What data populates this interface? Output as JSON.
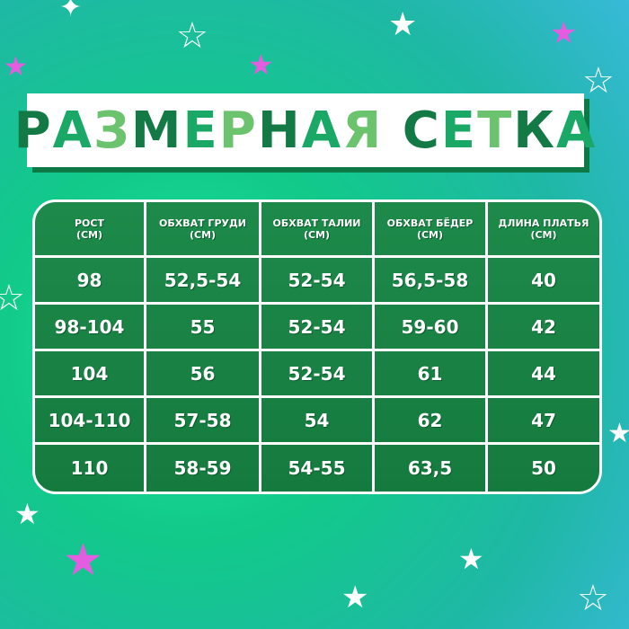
{
  "title": {
    "text": "РАЗМЕРНАЯ СЕТКА",
    "letter_colors": [
      "#137a45",
      "#1aa866",
      "#6cc36e",
      "#137a45",
      "#1aa866",
      "#6cc36e",
      "#137a45",
      "#1aa866",
      "#6cc36e"
    ]
  },
  "colors": {
    "table_bg": "#1a8446",
    "title_dark": "#137a45",
    "title_mid": "#1aa866",
    "title_light": "#6cc36e",
    "star_pink": "#e45ce0"
  },
  "headers": [
    {
      "line1": "РОСТ",
      "line2": "(СМ)"
    },
    {
      "line1": "ОБХВАТ ГРУДИ",
      "line2": "(СМ)"
    },
    {
      "line1": "ОБХВАТ ТАЛИИ",
      "line2": "(СМ)"
    },
    {
      "line1": "ОБХВАТ БЁДЕР",
      "line2": "(СМ)"
    },
    {
      "line1": "ДЛИНА ПЛАТЬЯ",
      "line2": "(СМ)"
    }
  ],
  "rows": [
    [
      "98",
      "52,5-54",
      "52-54",
      "56,5-58",
      "40"
    ],
    [
      "98-104",
      "55",
      "52-54",
      "59-60",
      "42"
    ],
    [
      "104",
      "56",
      "52-54",
      "61",
      "44"
    ],
    [
      "104-110",
      "57-58",
      "54",
      "62",
      "47"
    ],
    [
      "110",
      "58-59",
      "54-55",
      "63,5",
      "50"
    ]
  ]
}
